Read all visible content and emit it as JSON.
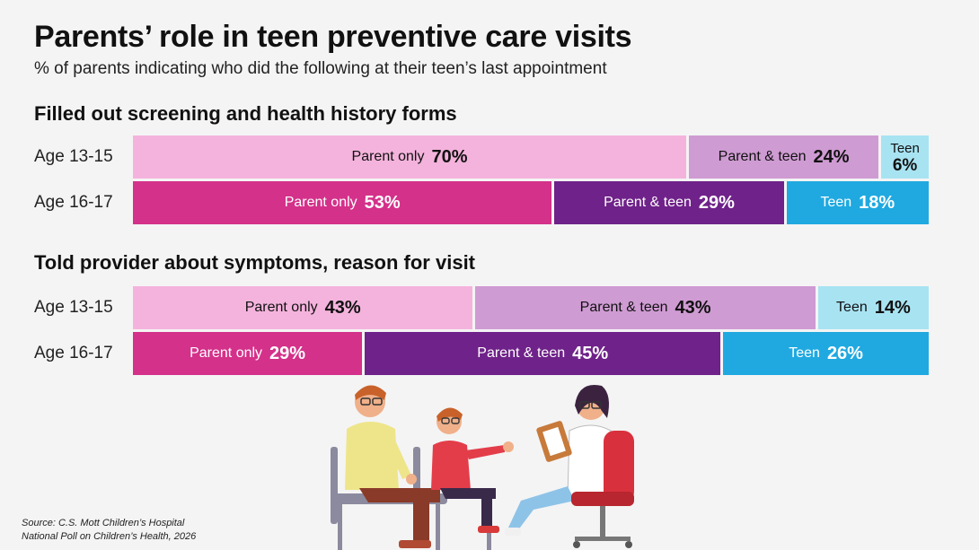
{
  "title": "Parents’ role in teen preventive care visits",
  "subtitle": "% of parents indicating who did the following at their teen’s last appointment",
  "source": {
    "line1": "Source: C.S. Mott Children’s Hospital",
    "line2": "National Poll on Children’s Health, 2026"
  },
  "colors": {
    "light": [
      "#f4b3dc",
      "#cf9bd3",
      "#a8e3f2"
    ],
    "dark": [
      "#d4318a",
      "#6f2289",
      "#20a9e0"
    ],
    "light_text": "#111111",
    "dark_text": "#ffffff"
  },
  "chart_data": [
    {
      "type": "bar",
      "stacked": true,
      "orientation": "horizontal",
      "title": "Filled out screening and health history forms",
      "categories": [
        "Age 13-15",
        "Age 16-17"
      ],
      "series": [
        {
          "name": "Parent only",
          "values": [
            70,
            53
          ]
        },
        {
          "name": "Parent & teen",
          "values": [
            24,
            29
          ]
        },
        {
          "name": "Teen",
          "values": [
            6,
            18
          ]
        }
      ],
      "xlim": [
        0,
        100
      ],
      "unit": "%"
    },
    {
      "type": "bar",
      "stacked": true,
      "orientation": "horizontal",
      "title": "Told provider about symptoms, reason for visit",
      "categories": [
        "Age 13-15",
        "Age 16-17"
      ],
      "series": [
        {
          "name": "Parent only",
          "values": [
            43,
            29
          ]
        },
        {
          "name": "Parent & teen",
          "values": [
            43,
            45
          ]
        },
        {
          "name": "Teen",
          "values": [
            14,
            26
          ]
        }
      ],
      "xlim": [
        0,
        100
      ],
      "unit": "%"
    }
  ]
}
